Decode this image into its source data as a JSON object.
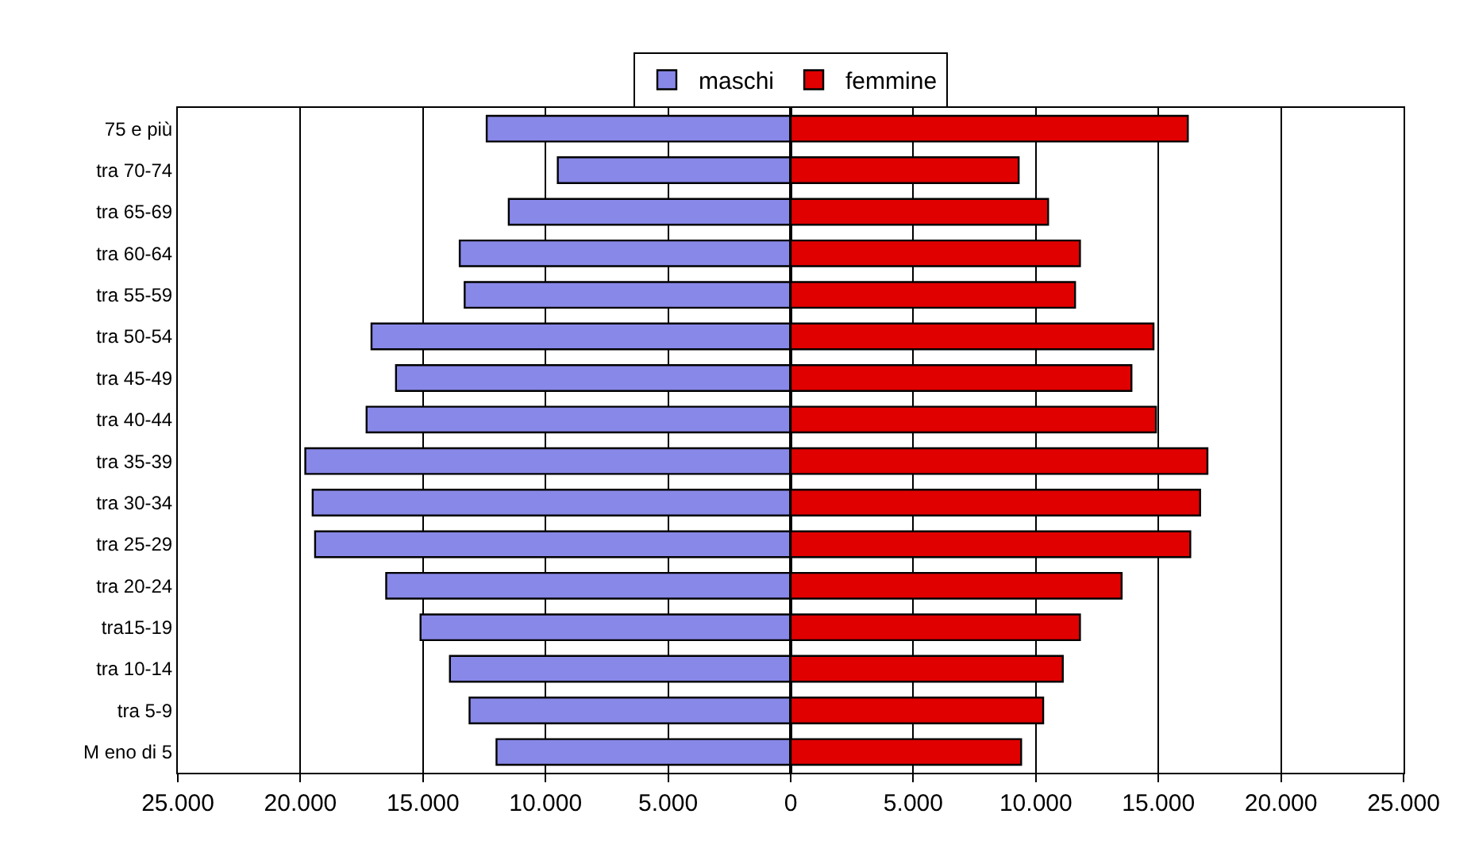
{
  "chart_data": [
    {
      "type": "bar",
      "orientation": "horizontal",
      "legend": "top",
      "grid": "x",
      "categories": [
        "75 e più",
        "tra 70-74",
        "tra 65-69",
        "tra 60-64",
        "tra 55-59",
        "tra 50-54",
        "tra 45-49",
        "tra 40-44",
        "tra 35-39",
        "tra 30-34",
        "tra 25-29",
        "tra 20-24",
        "tra15-19",
        "tra 10-14",
        "tra 5-9",
        "M eno di 5"
      ],
      "series": [
        {
          "name": "maschi",
          "color": "#8888e8",
          "values": [
            12400,
            9500,
            11500,
            13500,
            13300,
            17100,
            16100,
            17300,
            19800,
            19500,
            19400,
            16500,
            15100,
            13900,
            13100,
            12000
          ]
        }
      ],
      "xlim": [
        25000,
        0
      ],
      "xticks": [
        {
          "value": 25000,
          "label": "25.000"
        },
        {
          "value": 20000,
          "label": "20.000"
        },
        {
          "value": 15000,
          "label": "15.000"
        },
        {
          "value": 10000,
          "label": "10.000"
        },
        {
          "value": 5000,
          "label": "5.000"
        },
        0
      ]
    },
    {
      "type": "bar",
      "orientation": "horizontal",
      "legend": "top",
      "grid": "x",
      "tick_labels": "x",
      "categories": [
        "75 e più",
        "tra 70-74",
        "tra 65-69",
        "tra 60-64",
        "tra 55-59",
        "tra 50-54",
        "tra 45-49",
        "tra 40-44",
        "tra 35-39",
        "tra 30-34",
        "tra 25-29",
        "tra 20-24",
        "tra15-19",
        "tra 10-14",
        "tra 5-9",
        "M eno di 5"
      ],
      "series": [
        {
          "name": "femmine",
          "color": "#e00000",
          "values": [
            16200,
            9300,
            10500,
            11800,
            11600,
            14800,
            13900,
            14900,
            17000,
            16700,
            16300,
            13500,
            11800,
            11100,
            10300,
            9400
          ]
        }
      ],
      "xlim": [
        0,
        25000
      ],
      "xticks": [
        {
          "value": 5000,
          "label": "5.000"
        },
        {
          "value": 10000,
          "label": "10.000"
        },
        {
          "value": 15000,
          "label": "15.000"
        },
        {
          "value": 20000,
          "label": "20.000"
        },
        {
          "value": 25000,
          "label": "25.000"
        }
      ]
    }
  ]
}
